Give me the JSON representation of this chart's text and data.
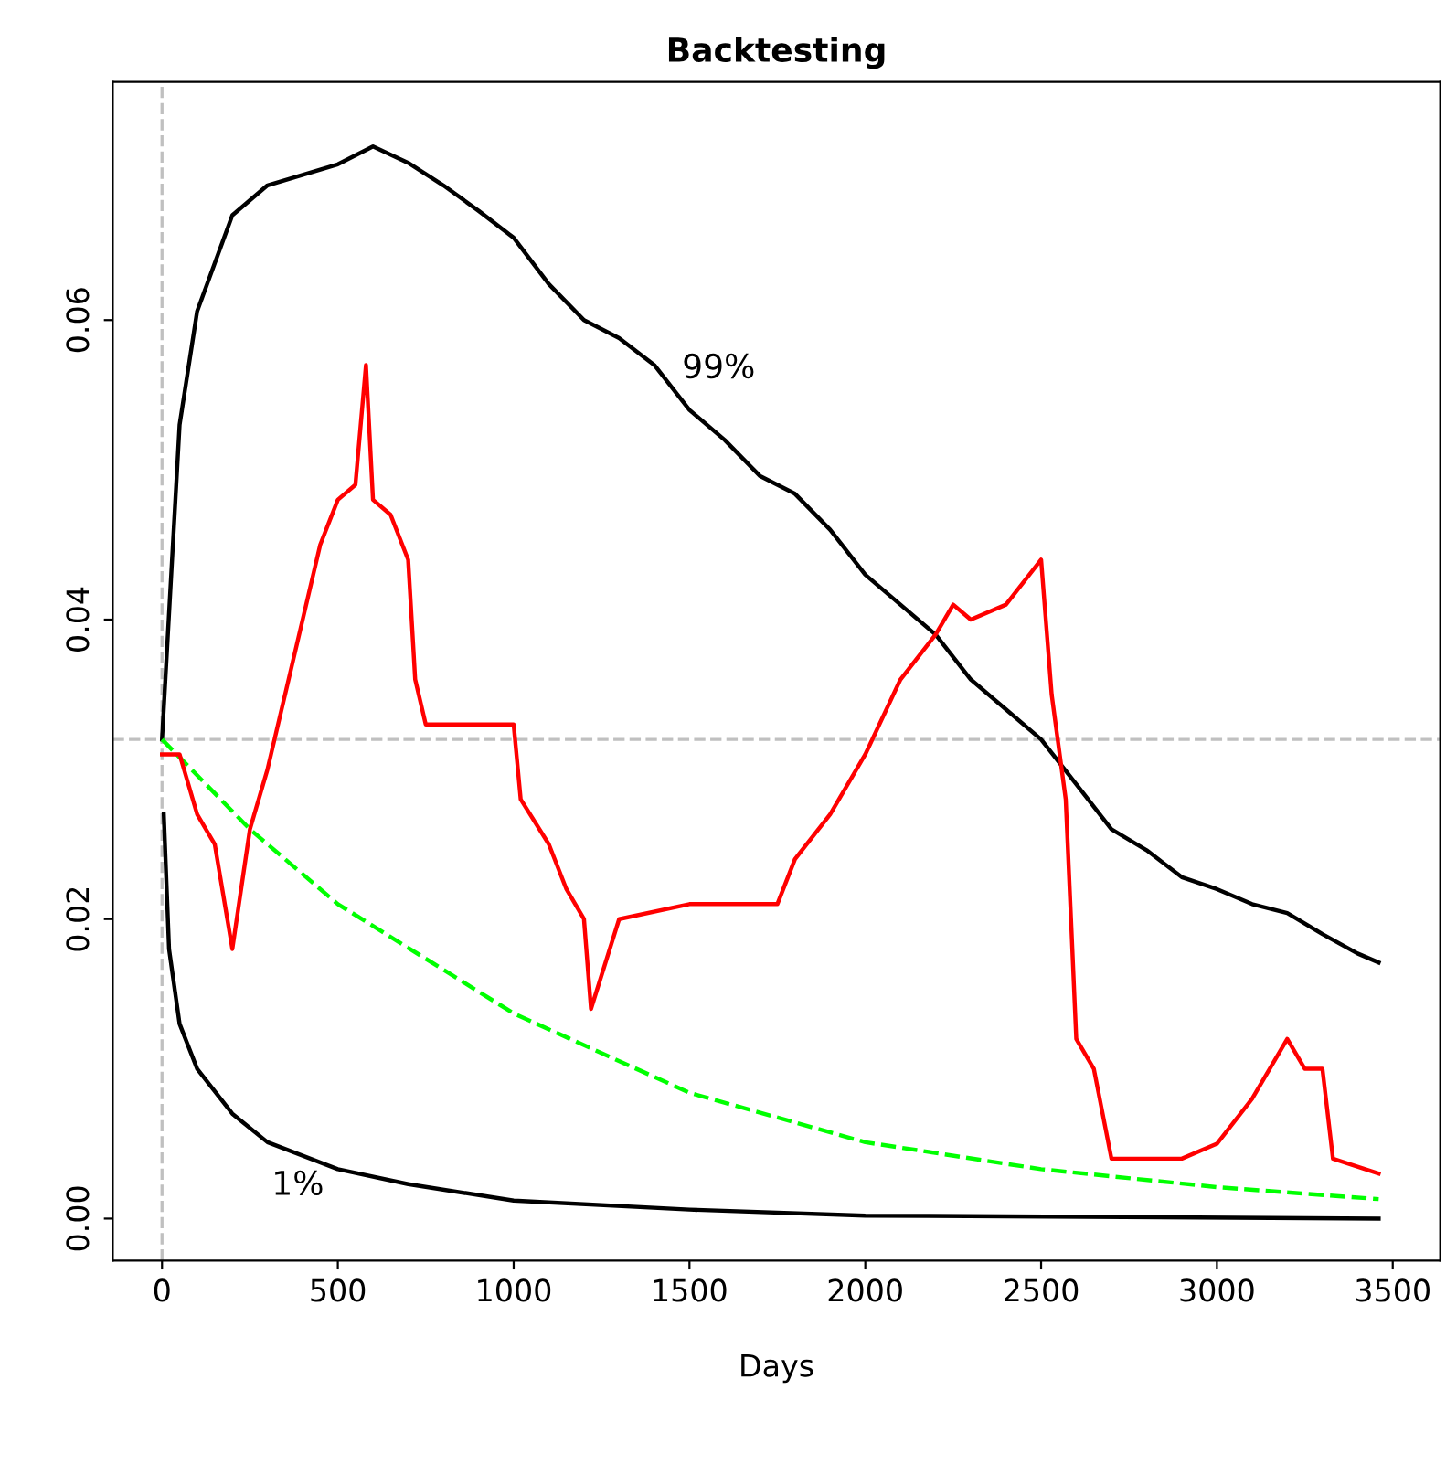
{
  "chart_data": {
    "type": "line",
    "title": "Backtesting",
    "xlabel": "Days",
    "xlim": [
      -140,
      3635
    ],
    "ylim": [
      -0.0028,
      0.0759
    ],
    "xticks": [
      0,
      500,
      1000,
      1500,
      2000,
      2500,
      3000,
      3500
    ],
    "yticks": [
      {
        "value": 0,
        "label": "0.00"
      },
      {
        "value": 0.02,
        "label": "0.02"
      },
      {
        "value": 0.04,
        "label": "0.04"
      },
      {
        "value": 0.06,
        "label": "0.06"
      }
    ],
    "grid": false,
    "series": [
      {
        "color": "#000000",
        "x": [
          0,
          50,
          100,
          200,
          300,
          500,
          600,
          700,
          800,
          900,
          1000,
          1100,
          1200,
          1300,
          1400,
          1500,
          1600,
          1700,
          1800,
          1900,
          2000,
          2100,
          2200,
          2300,
          2400,
          2500,
          2600,
          2700,
          2800,
          2900,
          3000,
          3100,
          3200,
          3300,
          3400,
          3460
        ],
        "values": [
          0.032,
          0.053,
          0.0606,
          0.067,
          0.069,
          0.0704,
          0.0716,
          0.0705,
          0.069,
          0.0673,
          0.0655,
          0.0624,
          0.06,
          0.0588,
          0.057,
          0.054,
          0.052,
          0.0496,
          0.0484,
          0.046,
          0.043,
          0.041,
          0.039,
          0.036,
          0.034,
          0.032,
          0.029,
          0.026,
          0.0246,
          0.0228,
          0.022,
          0.021,
          0.0204,
          0.019,
          0.0177,
          0.0171
        ]
      },
      {
        "color": "#000000",
        "x": [
          5,
          20,
          50,
          100,
          200,
          300,
          500,
          700,
          1000,
          1500,
          2000,
          3460
        ],
        "values": [
          0.027,
          0.018,
          0.013,
          0.01,
          0.007,
          0.0051,
          0.0033,
          0.0023,
          0.0012,
          0.0006,
          0.0002,
          0
        ]
      },
      {
        "color": "#00ff00",
        "line_style": "dashed",
        "x": [
          0,
          250,
          500,
          1000,
          1500,
          2000,
          2500,
          3000,
          3460
        ],
        "values": [
          0.032,
          0.026,
          0.021,
          0.0137,
          0.0084,
          0.0051,
          0.0033,
          0.0021,
          0.0013
        ]
      },
      {
        "color": "#ff0000",
        "x": [
          0,
          50,
          100,
          150,
          200,
          250,
          300,
          350,
          400,
          450,
          500,
          550,
          580,
          600,
          650,
          700,
          720,
          750,
          800,
          900,
          1000,
          1020,
          1100,
          1150,
          1200,
          1220,
          1300,
          1500,
          1700,
          1750,
          1800,
          1900,
          2000,
          2100,
          2200,
          2250,
          2300,
          2400,
          2500,
          2530,
          2570,
          2600,
          2650,
          2700,
          2800,
          2900,
          3000,
          3100,
          3200,
          3250,
          3300,
          3330,
          3460
        ],
        "values": [
          0.031,
          0.031,
          0.027,
          0.025,
          0.018,
          0.026,
          0.03,
          0.035,
          0.04,
          0.045,
          0.048,
          0.049,
          0.057,
          0.048,
          0.047,
          0.044,
          0.036,
          0.033,
          0.033,
          0.033,
          0.033,
          0.028,
          0.025,
          0.022,
          0.02,
          0.014,
          0.02,
          0.021,
          0.021,
          0.021,
          0.024,
          0.027,
          0.031,
          0.036,
          0.039,
          0.041,
          0.04,
          0.041,
          0.044,
          0.035,
          0.028,
          0.012,
          0.01,
          0.004,
          0.004,
          0.004,
          0.005,
          0.008,
          0.012,
          0.01,
          0.01,
          0.004,
          0.003
        ]
      }
    ],
    "ref_lines": [
      {
        "axis": "y",
        "value": 0.032,
        "color": "#c0c0c0",
        "line_style": "dashed"
      },
      {
        "axis": "x",
        "value": 0,
        "color": "#c0c0c0",
        "line_style": "dashed"
      }
    ],
    "annotations": [
      "99%",
      "1%"
    ]
  }
}
